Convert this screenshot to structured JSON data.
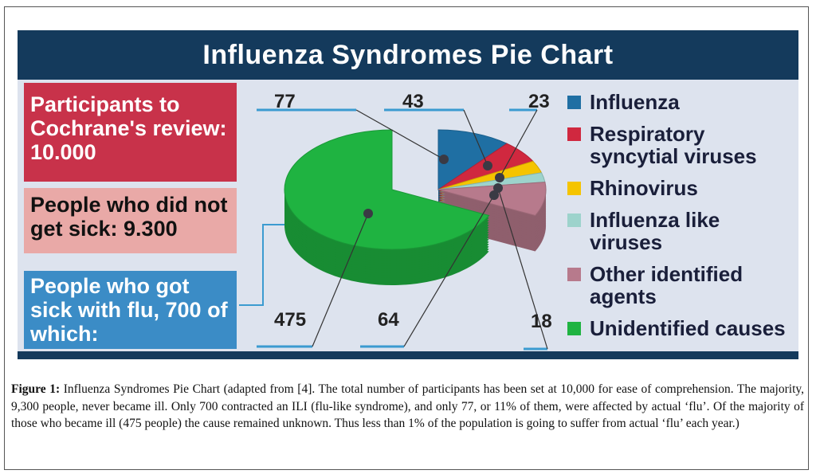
{
  "title": "Influenza Syndromes Pie Chart",
  "boxes": {
    "participants": "Participants to Cochrane's review: 10.000",
    "not_sick": "People who did not get sick: 9.300",
    "sick": "People who got sick with flu, 700 of which:"
  },
  "chart_data": {
    "type": "pie",
    "title": "Influenza Syndromes Pie Chart",
    "total": 700,
    "slices": [
      {
        "name": "Influenza",
        "value": 77,
        "color": "#1f6fa3"
      },
      {
        "name": "Respiratory syncytial viruses",
        "value": 43,
        "color": "#d0283f"
      },
      {
        "name": "Rhinovirus",
        "value": 23,
        "color": "#f5c400"
      },
      {
        "name": "Influenza like viruses",
        "value": 18,
        "color": "#9dd3cc"
      },
      {
        "name": "Other identified agents",
        "value": 64,
        "color": "#b77a8c"
      },
      {
        "name": "Unidentified causes",
        "value": 475,
        "color": "#1fb341"
      }
    ],
    "data_labels": [
      "77",
      "43",
      "23",
      "18",
      "64",
      "475"
    ],
    "legend": [
      "Influenza",
      "Respiratory syncytial viruses",
      "Rhinovirus",
      "Influenza like viruses",
      "Other identified agents",
      "Unidentified causes"
    ],
    "legend_position": "right"
  },
  "caption": {
    "label": "Figure 1:",
    "text": " Influenza Syndromes Pie Chart (adapted from [4]. The total number of participants has been set at 10,000 for ease of comprehension. The majority, 9,300 people, never became ill. Only 700 contracted an ILI (flu-like syndrome), and only 77, or 11% of them, were affected by actual ‘flu’. Of the majority of those who became ill (475 people) the cause remained unknown. Thus less than 1% of the population is going to suffer from actual ‘flu’ each year.)"
  }
}
